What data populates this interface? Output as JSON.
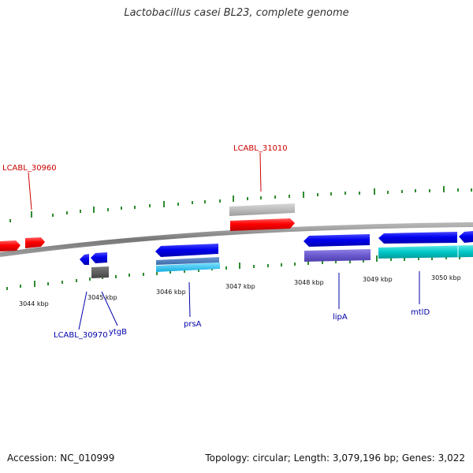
{
  "title": "Lactobacillus casei BL23, complete genome",
  "footer": {
    "accession": "Accession: NC_010999",
    "summary": "Topology: circular; Length: 3,079,196 bp; Genes: 3,022"
  },
  "colors": {
    "forward_cds": "#ff0000",
    "forward_other": "#b8b8b8",
    "reverse_cds": "#0000ee",
    "reverse_cyan": "#00c8c8",
    "reverse_violet": "#6a5acd",
    "reverse_gray": "#555555",
    "backbone": "#888888",
    "tick": "#2e8b2e",
    "label_forward": "#cc0000",
    "label_reverse": "#0000aa"
  },
  "scale": {
    "unit": "kbp",
    "tick_labels": [
      "3044 kbp",
      "3045 kbp",
      "3046 kbp",
      "3047 kbp",
      "3048 kbp",
      "3049 kbp",
      "3050 kbp"
    ]
  },
  "forward_labels": [
    "LCABL_30960",
    "LCABL_31010"
  ],
  "reverse_labels": [
    "LCABL_30970",
    "ytgB",
    "prsA",
    "lipA",
    "mtlD"
  ]
}
